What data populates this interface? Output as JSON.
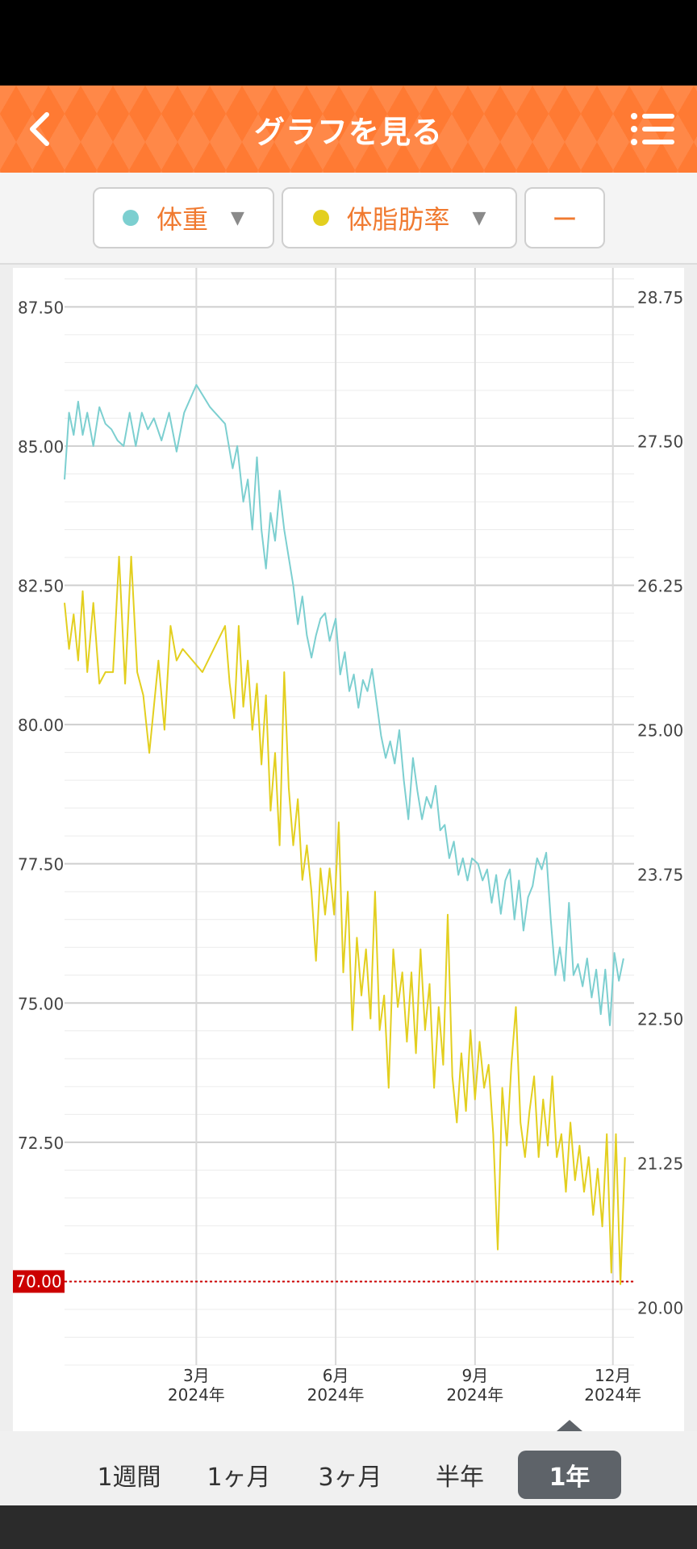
{
  "header": {
    "title": "グラフを見る"
  },
  "selectors": {
    "metric1": {
      "label": "体重",
      "dot_color": "#7ccfd0"
    },
    "metric2": {
      "label": "体脂肪率",
      "dot_color": "#e3cf1f"
    },
    "metric3": {
      "label": "ー"
    }
  },
  "colors": {
    "accent": "#ff7a33",
    "weight_line": "#7ccfd0",
    "fat_line": "#e3cf1f",
    "target_line": "#cc0000"
  },
  "chart_data": {
    "type": "line",
    "x_ticks": [
      {
        "month": "3月",
        "year": "2024年",
        "date": "2024-03-01"
      },
      {
        "month": "6月",
        "year": "2024年",
        "date": "2024-06-01"
      },
      {
        "month": "9月",
        "year": "2024年",
        "date": "2024-09-01"
      },
      {
        "month": "12月",
        "year": "2024年",
        "date": "2024-12-01"
      }
    ],
    "x_range": [
      "2023-12-05",
      "2024-12-15"
    ],
    "left_axis": {
      "ticks": [
        "87.50",
        "85.00",
        "82.50",
        "80.00",
        "77.50",
        "75.00",
        "72.50"
      ],
      "range": [
        68.5,
        88.2
      ]
    },
    "right_axis": {
      "ticks": [
        "28.75",
        "27.50",
        "26.25",
        "25.00",
        "23.75",
        "22.50",
        "21.25",
        "20.00"
      ],
      "range": [
        19.5,
        29.0
      ]
    },
    "target_line": {
      "value": 70.0,
      "label": "70.00"
    },
    "series": [
      {
        "name": "体重",
        "axis": "left",
        "points": [
          [
            "2023-12-05",
            84.4
          ],
          [
            "2023-12-08",
            85.6
          ],
          [
            "2023-12-11",
            85.2
          ],
          [
            "2023-12-14",
            85.8
          ],
          [
            "2023-12-17",
            85.2
          ],
          [
            "2023-12-20",
            85.6
          ],
          [
            "2023-12-24",
            85.0
          ],
          [
            "2023-12-28",
            85.7
          ],
          [
            "2024-01-01",
            85.4
          ],
          [
            "2024-01-05",
            85.3
          ],
          [
            "2024-01-09",
            85.1
          ],
          [
            "2024-01-13",
            85.0
          ],
          [
            "2024-01-17",
            85.6
          ],
          [
            "2024-01-21",
            85.0
          ],
          [
            "2024-01-25",
            85.6
          ],
          [
            "2024-01-29",
            85.3
          ],
          [
            "2024-02-02",
            85.5
          ],
          [
            "2024-02-07",
            85.1
          ],
          [
            "2024-02-12",
            85.6
          ],
          [
            "2024-02-17",
            84.9
          ],
          [
            "2024-02-22",
            85.6
          ],
          [
            "2024-03-01",
            86.1
          ],
          [
            "2024-03-10",
            85.7
          ],
          [
            "2024-03-20",
            85.4
          ],
          [
            "2024-03-25",
            84.6
          ],
          [
            "2024-03-28",
            85.0
          ],
          [
            "2024-04-01",
            84.0
          ],
          [
            "2024-04-04",
            84.4
          ],
          [
            "2024-04-07",
            83.5
          ],
          [
            "2024-04-10",
            84.8
          ],
          [
            "2024-04-13",
            83.5
          ],
          [
            "2024-04-16",
            82.8
          ],
          [
            "2024-04-19",
            83.8
          ],
          [
            "2024-04-22",
            83.3
          ],
          [
            "2024-04-25",
            84.2
          ],
          [
            "2024-04-28",
            83.5
          ],
          [
            "2024-05-01",
            83.0
          ],
          [
            "2024-05-04",
            82.5
          ],
          [
            "2024-05-07",
            81.8
          ],
          [
            "2024-05-10",
            82.3
          ],
          [
            "2024-05-13",
            81.6
          ],
          [
            "2024-05-16",
            81.2
          ],
          [
            "2024-05-19",
            81.6
          ],
          [
            "2024-05-22",
            81.9
          ],
          [
            "2024-05-25",
            82.0
          ],
          [
            "2024-05-28",
            81.5
          ],
          [
            "2024-06-01",
            81.9
          ],
          [
            "2024-06-04",
            80.9
          ],
          [
            "2024-06-07",
            81.3
          ],
          [
            "2024-06-10",
            80.6
          ],
          [
            "2024-06-13",
            80.9
          ],
          [
            "2024-06-16",
            80.3
          ],
          [
            "2024-06-19",
            80.8
          ],
          [
            "2024-06-22",
            80.6
          ],
          [
            "2024-06-25",
            81.0
          ],
          [
            "2024-06-28",
            80.4
          ],
          [
            "2024-07-01",
            79.8
          ],
          [
            "2024-07-04",
            79.4
          ],
          [
            "2024-07-07",
            79.7
          ],
          [
            "2024-07-10",
            79.3
          ],
          [
            "2024-07-13",
            79.9
          ],
          [
            "2024-07-16",
            79.0
          ],
          [
            "2024-07-19",
            78.3
          ],
          [
            "2024-07-22",
            79.4
          ],
          [
            "2024-07-25",
            78.8
          ],
          [
            "2024-07-28",
            78.3
          ],
          [
            "2024-07-31",
            78.7
          ],
          [
            "2024-08-03",
            78.5
          ],
          [
            "2024-08-06",
            78.9
          ],
          [
            "2024-08-09",
            78.1
          ],
          [
            "2024-08-12",
            78.2
          ],
          [
            "2024-08-15",
            77.6
          ],
          [
            "2024-08-18",
            77.9
          ],
          [
            "2024-08-21",
            77.3
          ],
          [
            "2024-08-24",
            77.6
          ],
          [
            "2024-08-27",
            77.2
          ],
          [
            "2024-08-30",
            77.6
          ],
          [
            "2024-09-03",
            77.5
          ],
          [
            "2024-09-06",
            77.2
          ],
          [
            "2024-09-09",
            77.4
          ],
          [
            "2024-09-12",
            76.8
          ],
          [
            "2024-09-15",
            77.3
          ],
          [
            "2024-09-18",
            76.6
          ],
          [
            "2024-09-21",
            77.2
          ],
          [
            "2024-09-24",
            77.4
          ],
          [
            "2024-09-27",
            76.5
          ],
          [
            "2024-09-30",
            77.2
          ],
          [
            "2024-10-03",
            76.3
          ],
          [
            "2024-10-06",
            76.9
          ],
          [
            "2024-10-09",
            77.1
          ],
          [
            "2024-10-12",
            77.6
          ],
          [
            "2024-10-15",
            77.4
          ],
          [
            "2024-10-18",
            77.7
          ],
          [
            "2024-10-21",
            76.5
          ],
          [
            "2024-10-24",
            75.5
          ],
          [
            "2024-10-27",
            76.0
          ],
          [
            "2024-10-30",
            75.4
          ],
          [
            "2024-11-02",
            76.8
          ],
          [
            "2024-11-05",
            75.5
          ],
          [
            "2024-11-08",
            75.7
          ],
          [
            "2024-11-11",
            75.3
          ],
          [
            "2024-11-14",
            75.8
          ],
          [
            "2024-11-17",
            75.1
          ],
          [
            "2024-11-20",
            75.6
          ],
          [
            "2024-11-23",
            74.8
          ],
          [
            "2024-11-26",
            75.6
          ],
          [
            "2024-11-29",
            74.6
          ],
          [
            "2024-12-02",
            75.9
          ],
          [
            "2024-12-05",
            75.4
          ],
          [
            "2024-12-08",
            75.8
          ]
        ]
      },
      {
        "name": "体脂肪率",
        "axis": "right",
        "points": [
          [
            "2023-12-05",
            26.1
          ],
          [
            "2023-12-08",
            25.7
          ],
          [
            "2023-12-11",
            26.0
          ],
          [
            "2023-12-14",
            25.6
          ],
          [
            "2023-12-17",
            26.2
          ],
          [
            "2023-12-20",
            25.5
          ],
          [
            "2023-12-24",
            26.1
          ],
          [
            "2023-12-28",
            25.4
          ],
          [
            "2024-01-01",
            25.5
          ],
          [
            "2024-01-06",
            25.5
          ],
          [
            "2024-01-10",
            26.5
          ],
          [
            "2024-01-14",
            25.4
          ],
          [
            "2024-01-18",
            26.5
          ],
          [
            "2024-01-22",
            25.5
          ],
          [
            "2024-01-26",
            25.3
          ],
          [
            "2024-01-30",
            24.8
          ],
          [
            "2024-02-05",
            25.6
          ],
          [
            "2024-02-09",
            25.0
          ],
          [
            "2024-02-13",
            25.9
          ],
          [
            "2024-02-17",
            25.6
          ],
          [
            "2024-02-21",
            25.7
          ],
          [
            "2024-03-05",
            25.5
          ],
          [
            "2024-03-20",
            25.9
          ],
          [
            "2024-03-23",
            25.4
          ],
          [
            "2024-03-26",
            25.1
          ],
          [
            "2024-03-29",
            25.9
          ],
          [
            "2024-04-01",
            25.2
          ],
          [
            "2024-04-04",
            25.6
          ],
          [
            "2024-04-07",
            25.0
          ],
          [
            "2024-04-10",
            25.4
          ],
          [
            "2024-04-13",
            24.7
          ],
          [
            "2024-04-16",
            25.3
          ],
          [
            "2024-04-19",
            24.3
          ],
          [
            "2024-04-22",
            24.8
          ],
          [
            "2024-04-25",
            24.0
          ],
          [
            "2024-04-28",
            25.5
          ],
          [
            "2024-05-01",
            24.5
          ],
          [
            "2024-05-04",
            24.0
          ],
          [
            "2024-05-07",
            24.4
          ],
          [
            "2024-05-10",
            23.7
          ],
          [
            "2024-05-13",
            24.0
          ],
          [
            "2024-05-16",
            23.6
          ],
          [
            "2024-05-19",
            23.0
          ],
          [
            "2024-05-22",
            23.8
          ],
          [
            "2024-05-25",
            23.4
          ],
          [
            "2024-05-28",
            23.8
          ],
          [
            "2024-05-31",
            23.4
          ],
          [
            "2024-06-03",
            24.2
          ],
          [
            "2024-06-06",
            22.9
          ],
          [
            "2024-06-09",
            23.6
          ],
          [
            "2024-06-12",
            22.4
          ],
          [
            "2024-06-15",
            23.2
          ],
          [
            "2024-06-18",
            22.7
          ],
          [
            "2024-06-21",
            23.1
          ],
          [
            "2024-06-24",
            22.5
          ],
          [
            "2024-06-27",
            23.6
          ],
          [
            "2024-06-30",
            22.4
          ],
          [
            "2024-07-03",
            22.7
          ],
          [
            "2024-07-06",
            21.9
          ],
          [
            "2024-07-09",
            23.1
          ],
          [
            "2024-07-12",
            22.6
          ],
          [
            "2024-07-15",
            22.9
          ],
          [
            "2024-07-18",
            22.3
          ],
          [
            "2024-07-21",
            22.9
          ],
          [
            "2024-07-24",
            22.2
          ],
          [
            "2024-07-27",
            23.1
          ],
          [
            "2024-07-30",
            22.4
          ],
          [
            "2024-08-02",
            22.8
          ],
          [
            "2024-08-05",
            21.9
          ],
          [
            "2024-08-08",
            22.6
          ],
          [
            "2024-08-11",
            22.1
          ],
          [
            "2024-08-14",
            23.4
          ],
          [
            "2024-08-17",
            22.0
          ],
          [
            "2024-08-20",
            21.6
          ],
          [
            "2024-08-23",
            22.2
          ],
          [
            "2024-08-26",
            21.7
          ],
          [
            "2024-08-29",
            22.4
          ],
          [
            "2024-09-01",
            21.8
          ],
          [
            "2024-09-04",
            22.3
          ],
          [
            "2024-09-07",
            21.9
          ],
          [
            "2024-09-10",
            22.1
          ],
          [
            "2024-09-13",
            21.5
          ],
          [
            "2024-09-16",
            20.5
          ],
          [
            "2024-09-19",
            21.9
          ],
          [
            "2024-09-22",
            21.4
          ],
          [
            "2024-09-25",
            22.1
          ],
          [
            "2024-09-28",
            22.6
          ],
          [
            "2024-10-01",
            21.6
          ],
          [
            "2024-10-04",
            21.3
          ],
          [
            "2024-10-07",
            21.7
          ],
          [
            "2024-10-10",
            22.0
          ],
          [
            "2024-10-13",
            21.3
          ],
          [
            "2024-10-16",
            21.8
          ],
          [
            "2024-10-19",
            21.4
          ],
          [
            "2024-10-22",
            22.0
          ],
          [
            "2024-10-25",
            21.3
          ],
          [
            "2024-10-28",
            21.5
          ],
          [
            "2024-10-31",
            21.0
          ],
          [
            "2024-11-03",
            21.6
          ],
          [
            "2024-11-06",
            21.1
          ],
          [
            "2024-11-09",
            21.4
          ],
          [
            "2024-11-12",
            21.0
          ],
          [
            "2024-11-15",
            21.3
          ],
          [
            "2024-11-18",
            20.8
          ],
          [
            "2024-11-21",
            21.2
          ],
          [
            "2024-11-24",
            20.7
          ],
          [
            "2024-11-27",
            21.5
          ],
          [
            "2024-11-30",
            20.3
          ],
          [
            "2024-12-03",
            21.5
          ],
          [
            "2024-12-06",
            20.2
          ],
          [
            "2024-12-09",
            21.3
          ]
        ]
      }
    ]
  },
  "range_tabs": [
    {
      "label": "1週間",
      "active": false
    },
    {
      "label": "1ヶ月",
      "active": false
    },
    {
      "label": "3ヶ月",
      "active": false
    },
    {
      "label": "半年",
      "active": false
    },
    {
      "label": "1年",
      "active": true
    }
  ]
}
